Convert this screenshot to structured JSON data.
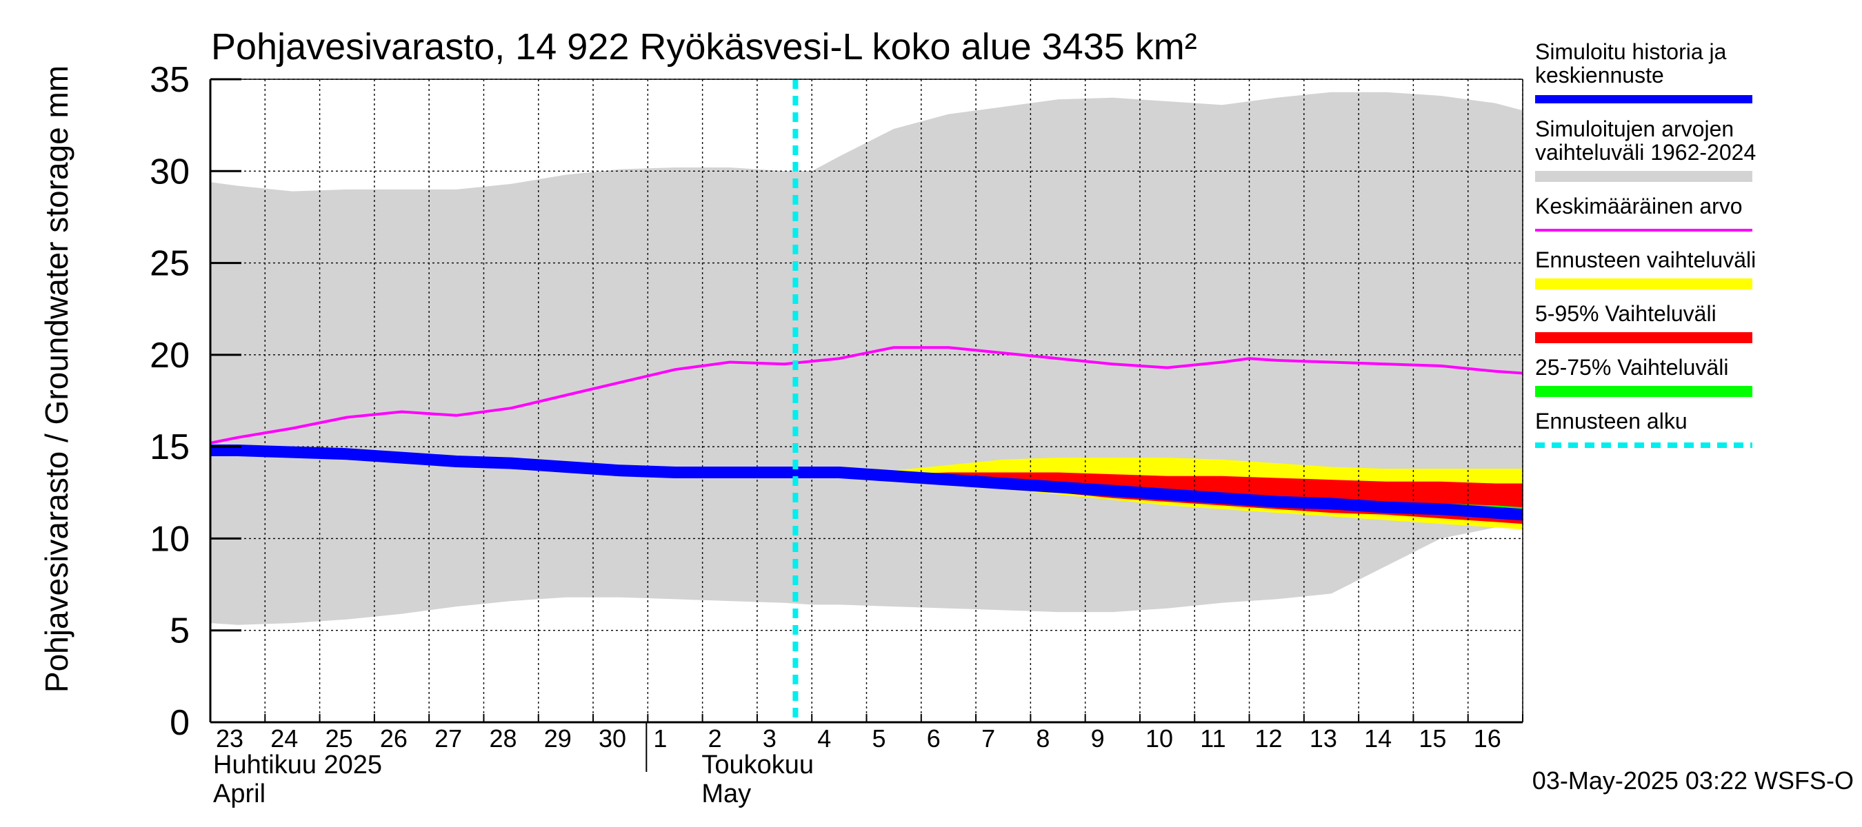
{
  "chart_data": {
    "type": "area",
    "title": "Pohjavesivarasto, 14 922 Ryökäsvesi-L koko alue 3435 km²",
    "ylabel": "Pohjavesivarasto / Groundwater storage   mm",
    "ylim": [
      0,
      35
    ],
    "yticks": [
      0,
      5,
      10,
      15,
      20,
      25,
      30,
      35
    ],
    "grid": true,
    "legend_position": "right",
    "x_days": [
      "23",
      "24",
      "25",
      "26",
      "27",
      "28",
      "29",
      "30",
      "1",
      "2",
      "3",
      "4",
      "5",
      "6",
      "7",
      "8",
      "9",
      "10",
      "11",
      "12",
      "13",
      "14",
      "15",
      "16"
    ],
    "month_labels": [
      {
        "fi": "Huhtikuu  2025",
        "en": "April",
        "start_day_index": 0
      },
      {
        "fi": "Toukokuu",
        "en": "May",
        "start_day_index": 8
      }
    ],
    "forecast_start_index": 10.2,
    "series": [
      {
        "name": "Simuloitujen arvojen vaihteluväli 1962-2024",
        "kind": "band",
        "color": "#d3d3d3",
        "x": [
          -0.5,
          0,
          1,
          2,
          3,
          4,
          5,
          6,
          7,
          8,
          9,
          10,
          10.5,
          11,
          12,
          13,
          14,
          15,
          16,
          17,
          18,
          19,
          20,
          21,
          22,
          23,
          23.5
        ],
        "upper": [
          29.4,
          29.2,
          28.9,
          29.0,
          29.0,
          29.0,
          29.3,
          29.8,
          30.1,
          30.2,
          30.2,
          30.0,
          30.0,
          30.8,
          32.3,
          33.1,
          33.5,
          33.9,
          34.0,
          33.8,
          33.6,
          34.0,
          34.3,
          34.3,
          34.1,
          33.7,
          33.3
        ],
        "lower": [
          5.4,
          5.3,
          5.4,
          5.6,
          5.9,
          6.3,
          6.6,
          6.8,
          6.8,
          6.7,
          6.6,
          6.5,
          6.4,
          6.4,
          6.3,
          6.2,
          6.1,
          6.0,
          6.0,
          6.2,
          6.5,
          6.7,
          7.0,
          8.5,
          10.0,
          10.6,
          10.9
        ]
      },
      {
        "name": "Keskimääräinen arvo",
        "kind": "line",
        "color": "#ff00ff",
        "x": [
          -0.5,
          0,
          1,
          2,
          3,
          4,
          5,
          6,
          7,
          8,
          9,
          10,
          11,
          12,
          13,
          14,
          15,
          16,
          17,
          18,
          18.5,
          19,
          20,
          21,
          22,
          23,
          23.5
        ],
        "values": [
          15.2,
          15.5,
          16.0,
          16.6,
          16.9,
          16.7,
          17.1,
          17.8,
          18.5,
          19.2,
          19.6,
          19.5,
          19.8,
          20.4,
          20.4,
          20.1,
          19.8,
          19.5,
          19.3,
          19.6,
          19.8,
          19.7,
          19.6,
          19.5,
          19.4,
          19.1,
          19.0
        ]
      },
      {
        "name": "Ennusteen vaihteluväli",
        "kind": "band",
        "color": "#ffff00",
        "x": [
          10,
          11,
          12,
          13,
          14,
          15,
          16,
          17,
          18,
          19,
          20,
          21,
          22,
          23,
          23.5
        ],
        "upper": [
          13.7,
          13.7,
          13.7,
          14.0,
          14.3,
          14.4,
          14.4,
          14.4,
          14.3,
          14.1,
          13.9,
          13.8,
          13.8,
          13.8,
          13.8
        ],
        "lower": [
          13.7,
          13.5,
          13.3,
          13.0,
          12.7,
          12.4,
          12.1,
          11.8,
          11.6,
          11.4,
          11.2,
          11.0,
          10.8,
          10.6,
          10.5
        ]
      },
      {
        "name": "5-95% Vaihteluväli",
        "kind": "band",
        "color": "#ff0000",
        "x": [
          10,
          11,
          12,
          13,
          14,
          15,
          16,
          17,
          18,
          19,
          20,
          21,
          22,
          23,
          23.5
        ],
        "upper": [
          13.7,
          13.6,
          13.5,
          13.6,
          13.6,
          13.6,
          13.5,
          13.4,
          13.4,
          13.3,
          13.2,
          13.1,
          13.1,
          13.0,
          13.0
        ],
        "lower": [
          13.7,
          13.5,
          13.3,
          13.1,
          12.8,
          12.5,
          12.2,
          12.0,
          11.8,
          11.6,
          11.4,
          11.3,
          11.1,
          10.9,
          10.8
        ]
      },
      {
        "name": "25-75% Vaihteluväli",
        "kind": "band",
        "color": "#00ff00",
        "x": [
          10,
          11,
          12,
          13,
          14,
          15,
          16,
          17,
          18,
          19,
          20,
          21,
          22,
          23,
          23.5
        ],
        "upper": [
          13.7,
          13.6,
          13.4,
          13.3,
          13.1,
          12.9,
          12.7,
          12.5,
          12.4,
          12.2,
          12.1,
          12.0,
          11.9,
          11.8,
          11.7
        ],
        "lower": [
          13.7,
          13.5,
          13.3,
          13.1,
          12.9,
          12.7,
          12.4,
          12.2,
          12.0,
          11.8,
          11.6,
          11.5,
          11.3,
          11.2,
          11.1
        ]
      },
      {
        "name": "Simuloitu historia ja keskiennuste",
        "kind": "line",
        "color": "#0000ff",
        "x": [
          -0.5,
          0,
          1,
          2,
          3,
          4,
          5,
          6,
          7,
          8,
          9,
          10,
          11,
          12,
          13,
          14,
          15,
          16,
          17,
          18,
          19,
          20,
          21,
          22,
          23,
          23.5
        ],
        "values": [
          14.8,
          14.8,
          14.7,
          14.6,
          14.4,
          14.2,
          14.1,
          13.9,
          13.7,
          13.6,
          13.6,
          13.6,
          13.6,
          13.4,
          13.2,
          13.0,
          12.8,
          12.6,
          12.4,
          12.2,
          12.0,
          11.9,
          11.7,
          11.6,
          11.4,
          11.3
        ]
      }
    ]
  },
  "legend": [
    {
      "lines": [
        "Simuloitu historia ja",
        "keskiennuste"
      ],
      "color": "#0000ff",
      "style": "thick"
    },
    {
      "lines": [
        "Simuloitujen arvojen",
        "vaihteluväli 1962-2024"
      ],
      "color": "#d3d3d3",
      "style": "band"
    },
    {
      "lines": [
        "Keskimääräinen arvo"
      ],
      "color": "#ff00ff",
      "style": "thin"
    },
    {
      "lines": [
        "Ennusteen vaihteluväli"
      ],
      "color": "#ffff00",
      "style": "band"
    },
    {
      "lines": [
        "5-95% Vaihteluväli"
      ],
      "color": "#ff0000",
      "style": "band"
    },
    {
      "lines": [
        "25-75% Vaihteluväli"
      ],
      "color": "#00ff00",
      "style": "band"
    },
    {
      "lines": [
        "Ennusteen alku"
      ],
      "color": "#00eeee",
      "style": "dashed"
    }
  ],
  "footer_text": "03-May-2025 03:22 WSFS-O"
}
